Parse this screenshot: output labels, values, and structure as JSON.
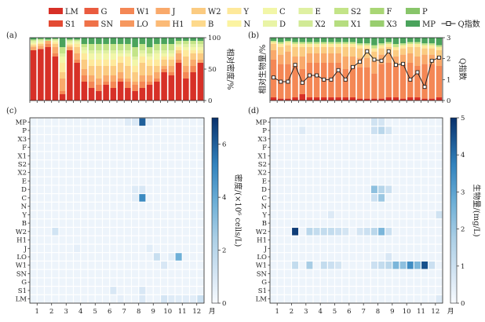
{
  "legend": {
    "items": [
      {
        "code": "LM",
        "label": "LM",
        "color": "#d73027"
      },
      {
        "code": "G",
        "label": "G",
        "color": "#ea5b3f"
      },
      {
        "code": "W1",
        "label": "W1",
        "color": "#f48755"
      },
      {
        "code": "J",
        "label": "J",
        "color": "#f9a96b"
      },
      {
        "code": "W2",
        "label": "W2",
        "color": "#fbcb81"
      },
      {
        "code": "Y",
        "label": "Y",
        "color": "#fee99b"
      },
      {
        "code": "C",
        "label": "C",
        "color": "#f2f6a8"
      },
      {
        "code": "E",
        "label": "E",
        "color": "#dff0a2"
      },
      {
        "code": "S2",
        "label": "S2",
        "color": "#c3e488"
      },
      {
        "code": "F",
        "label": "F",
        "color": "#a9d675"
      },
      {
        "code": "P",
        "label": "P",
        "color": "#88c56a"
      },
      {
        "code": "S1",
        "label": "S1",
        "color": "#e34a33"
      },
      {
        "code": "SN",
        "label": "SN",
        "color": "#ef7148"
      },
      {
        "code": "LO",
        "label": "LO",
        "color": "#f6985f"
      },
      {
        "code": "H1",
        "label": "H1",
        "color": "#fbba76"
      },
      {
        "code": "B",
        "label": "B",
        "color": "#fdd98c"
      },
      {
        "code": "N",
        "label": "N",
        "color": "#fbf3a1"
      },
      {
        "code": "D",
        "label": "D",
        "color": "#e9f4a6"
      },
      {
        "code": "X2",
        "label": "X2",
        "color": "#d1ea96"
      },
      {
        "code": "X1",
        "label": "X1",
        "color": "#b6dd80"
      },
      {
        "code": "X3",
        "label": "X3",
        "color": "#99ce6f"
      },
      {
        "code": "MP",
        "label": "MP",
        "color": "#4aa35c"
      }
    ],
    "q_label": "Q指数"
  },
  "panels": {
    "a": "(a)",
    "b": "(b)",
    "c": "(c)",
    "d": "(d)"
  },
  "chart_data": [
    {
      "id": "a",
      "type": "bar",
      "stacked": true,
      "ylabel": "相对密度/%",
      "ylim": [
        0,
        100
      ],
      "yticks": [
        0,
        50,
        100
      ],
      "n_bars": 24,
      "stack_order": [
        "LM",
        "S1",
        "G",
        "SN",
        "W1",
        "LO",
        "J",
        "H1",
        "W2",
        "B",
        "Y",
        "N",
        "C",
        "D",
        "E",
        "X2",
        "S2",
        "X1",
        "F",
        "X3",
        "P",
        "MP"
      ],
      "series": [
        {
          "name": "LM",
          "values": [
            80,
            82,
            85,
            70,
            10,
            80,
            60,
            30,
            20,
            15,
            25,
            20,
            30,
            20,
            15,
            20,
            25,
            30,
            45,
            40,
            60,
            35,
            45,
            60
          ]
        },
        {
          "name": "S1",
          "values": [
            0,
            0,
            0,
            0,
            0,
            0,
            0,
            0,
            0,
            0,
            0,
            0,
            0,
            0,
            0,
            0,
            0,
            0,
            0,
            0,
            0,
            0,
            0,
            0
          ]
        },
        {
          "name": "W1",
          "values": [
            0,
            0,
            5,
            5,
            5,
            0,
            5,
            10,
            10,
            10,
            5,
            10,
            5,
            10,
            10,
            10,
            5,
            5,
            5,
            5,
            5,
            10,
            10,
            0
          ]
        },
        {
          "name": "J",
          "values": [
            5,
            5,
            5,
            10,
            20,
            5,
            10,
            10,
            10,
            10,
            10,
            10,
            10,
            5,
            5,
            10,
            10,
            10,
            5,
            10,
            10,
            10,
            10,
            5
          ]
        },
        {
          "name": "W2",
          "values": [
            3,
            3,
            0,
            5,
            10,
            3,
            10,
            15,
            15,
            20,
            15,
            15,
            15,
            20,
            15,
            20,
            15,
            10,
            10,
            10,
            5,
            15,
            10,
            10
          ]
        },
        {
          "name": "Y",
          "values": [
            2,
            2,
            0,
            3,
            15,
            2,
            5,
            10,
            10,
            10,
            10,
            10,
            10,
            15,
            10,
            10,
            10,
            10,
            5,
            5,
            5,
            10,
            5,
            5
          ]
        },
        {
          "name": "C",
          "values": [
            2,
            2,
            0,
            2,
            10,
            2,
            3,
            5,
            10,
            10,
            10,
            10,
            5,
            5,
            10,
            5,
            5,
            10,
            5,
            5,
            3,
            5,
            5,
            5
          ]
        },
        {
          "name": "E",
          "values": [
            3,
            2,
            0,
            2,
            5,
            3,
            2,
            5,
            5,
            5,
            5,
            5,
            5,
            5,
            5,
            5,
            5,
            5,
            5,
            5,
            2,
            5,
            5,
            5
          ]
        },
        {
          "name": "S2",
          "values": [
            2,
            2,
            2,
            1,
            10,
            2,
            2,
            5,
            10,
            10,
            10,
            10,
            10,
            10,
            15,
            10,
            10,
            10,
            10,
            10,
            5,
            5,
            5,
            5
          ]
        },
        {
          "name": "MP",
          "values": [
            3,
            2,
            3,
            2,
            15,
            3,
            3,
            10,
            10,
            10,
            10,
            10,
            10,
            10,
            15,
            10,
            15,
            10,
            10,
            10,
            5,
            5,
            5,
            5
          ]
        }
      ]
    },
    {
      "id": "b",
      "type": "bar",
      "stacked": true,
      "ylabel": "相对生物量/%",
      "ylim": [
        0,
        100
      ],
      "y2label": "Q指数",
      "y2lim": [
        0,
        3
      ],
      "y2ticks": [
        0,
        1,
        2,
        3
      ],
      "n_bars": 24,
      "series": [
        {
          "name": "LM",
          "values": [
            5,
            3,
            3,
            5,
            10,
            5,
            5,
            5,
            5,
            5,
            5,
            5,
            3,
            3,
            3,
            3,
            5,
            5,
            3,
            5,
            5,
            3,
            3,
            5
          ]
        },
        {
          "name": "W1",
          "values": [
            60,
            55,
            55,
            50,
            40,
            55,
            55,
            55,
            55,
            55,
            45,
            50,
            50,
            50,
            40,
            55,
            55,
            50,
            55,
            55,
            50,
            55,
            55,
            50
          ]
        },
        {
          "name": "J",
          "values": [
            15,
            15,
            20,
            15,
            20,
            15,
            15,
            15,
            15,
            15,
            20,
            15,
            15,
            15,
            20,
            15,
            15,
            15,
            15,
            15,
            15,
            15,
            15,
            15
          ]
        },
        {
          "name": "W2",
          "values": [
            10,
            12,
            10,
            15,
            15,
            10,
            10,
            10,
            10,
            10,
            15,
            15,
            15,
            15,
            15,
            10,
            10,
            10,
            10,
            10,
            15,
            10,
            10,
            10
          ]
        },
        {
          "name": "Y",
          "values": [
            3,
            5,
            5,
            5,
            5,
            5,
            5,
            5,
            5,
            5,
            5,
            5,
            5,
            5,
            5,
            5,
            5,
            5,
            5,
            5,
            5,
            5,
            5,
            5
          ]
        },
        {
          "name": "S2",
          "values": [
            2,
            3,
            2,
            3,
            3,
            3,
            3,
            3,
            3,
            3,
            3,
            3,
            3,
            3,
            5,
            3,
            3,
            5,
            3,
            3,
            3,
            3,
            3,
            3
          ]
        },
        {
          "name": "MP",
          "values": [
            5,
            7,
            5,
            7,
            7,
            7,
            7,
            7,
            7,
            7,
            7,
            7,
            9,
            9,
            12,
            9,
            7,
            10,
            9,
            7,
            7,
            9,
            9,
            12
          ]
        }
      ],
      "q_index": [
        1.1,
        0.9,
        0.9,
        1.7,
        0.85,
        1.2,
        1.2,
        1.0,
        1.0,
        1.45,
        1.0,
        1.6,
        1.85,
        2.35,
        1.95,
        1.9,
        2.35,
        1.7,
        1.75,
        1.0,
        1.35,
        0.65,
        1.9,
        2.05
      ]
    },
    {
      "id": "c",
      "type": "heatmap",
      "cbar_label": "密度/(×10⁶ cells/L)",
      "vlim": [
        0,
        7
      ],
      "cbar_ticks": [
        0,
        2,
        4,
        6
      ],
      "xlabel": "月",
      "xticks": [
        "1",
        "2",
        "3",
        "4",
        "5",
        "6",
        "7",
        "8",
        "9",
        "10",
        "11",
        "12"
      ],
      "yticks": [
        "MP",
        "P",
        "X3",
        "F",
        "X1",
        "S2",
        "X2",
        "E",
        "D",
        "C",
        "N",
        "Y",
        "B",
        "W2",
        "H1",
        "J",
        "LO",
        "W1",
        "SN",
        "G",
        "S1",
        "LM"
      ],
      "n_cols": 24,
      "cells": [
        {
          "row": "MP",
          "col": 13,
          "v": 0.8
        },
        {
          "row": "MP",
          "col": 14,
          "v": 0.9
        },
        {
          "row": "MP",
          "col": 15,
          "v": 6.0
        },
        {
          "row": "MP",
          "col": 16,
          "v": 0.6
        },
        {
          "row": "D",
          "col": 14,
          "v": 0.8
        },
        {
          "row": "D",
          "col": 15,
          "v": 1.0
        },
        {
          "row": "C",
          "col": 15,
          "v": 5.0
        },
        {
          "row": "C",
          "col": 14,
          "v": 0.7
        },
        {
          "row": "W2",
          "col": 3,
          "v": 1.2
        },
        {
          "row": "J",
          "col": 6,
          "v": 0.6
        },
        {
          "row": "J",
          "col": 16,
          "v": 0.7
        },
        {
          "row": "LO",
          "col": 17,
          "v": 1.5
        },
        {
          "row": "LO",
          "col": 20,
          "v": 3.8
        },
        {
          "row": "LO",
          "col": 19,
          "v": 0.7
        },
        {
          "row": "W1",
          "col": 18,
          "v": 1.0
        },
        {
          "row": "S1",
          "col": 11,
          "v": 1.0
        },
        {
          "row": "S1",
          "col": 15,
          "v": 1.0
        },
        {
          "row": "LM",
          "col": 12,
          "v": 0.6
        },
        {
          "row": "LM",
          "col": 15,
          "v": 0.9
        },
        {
          "row": "LM",
          "col": 18,
          "v": 1.1
        },
        {
          "row": "LM",
          "col": 19,
          "v": 0.8
        },
        {
          "row": "LM",
          "col": 20,
          "v": 0.7
        },
        {
          "row": "LM",
          "col": 21,
          "v": 0.7
        },
        {
          "row": "LM",
          "col": 22,
          "v": 0.7
        },
        {
          "row": "LM",
          "col": 23,
          "v": 1.4
        }
      ],
      "base_value": 0.35
    },
    {
      "id": "d",
      "type": "heatmap",
      "cbar_label": "生物量/(mg/L)",
      "vlim": [
        0,
        5
      ],
      "cbar_ticks": [
        0,
        1,
        2,
        3,
        4,
        5
      ],
      "xlabel": "月",
      "xticks": [
        "1",
        "2",
        "3",
        "4",
        "5",
        "6",
        "7",
        "8",
        "9",
        "10",
        "11",
        "12"
      ],
      "yticks": [
        "MP",
        "P",
        "X3",
        "F",
        "X1",
        "S2",
        "X2",
        "E",
        "D",
        "C",
        "N",
        "Y",
        "B",
        "W2",
        "H1",
        "J",
        "LO",
        "W1",
        "SN",
        "G",
        "S1",
        "LM"
      ],
      "n_cols": 24,
      "cells": [
        {
          "row": "MP",
          "col": 14,
          "v": 0.9
        },
        {
          "row": "MP",
          "col": 15,
          "v": 0.8
        },
        {
          "row": "P",
          "col": 4,
          "v": 0.6
        },
        {
          "row": "P",
          "col": 14,
          "v": 1.0
        },
        {
          "row": "P",
          "col": 15,
          "v": 1.4
        },
        {
          "row": "P",
          "col": 16,
          "v": 0.8
        },
        {
          "row": "D",
          "col": 14,
          "v": 2.2
        },
        {
          "row": "D",
          "col": 15,
          "v": 1.5
        },
        {
          "row": "D",
          "col": 16,
          "v": 1.0
        },
        {
          "row": "C",
          "col": 14,
          "v": 1.0
        },
        {
          "row": "C",
          "col": 15,
          "v": 2.0
        },
        {
          "row": "Y",
          "col": 8,
          "v": 0.6
        },
        {
          "row": "Y",
          "col": 23,
          "v": 0.9
        },
        {
          "row": "W2",
          "col": 3,
          "v": 4.8
        },
        {
          "row": "W2",
          "col": 5,
          "v": 1.4
        },
        {
          "row": "W2",
          "col": 6,
          "v": 1.2
        },
        {
          "row": "W2",
          "col": 7,
          "v": 1.2
        },
        {
          "row": "W2",
          "col": 8,
          "v": 1.2
        },
        {
          "row": "W2",
          "col": 9,
          "v": 1.0
        },
        {
          "row": "W2",
          "col": 10,
          "v": 0.8
        },
        {
          "row": "W2",
          "col": 12,
          "v": 0.8
        },
        {
          "row": "W2",
          "col": 13,
          "v": 1.0
        },
        {
          "row": "W2",
          "col": 14,
          "v": 1.4
        },
        {
          "row": "W2",
          "col": 15,
          "v": 2.5
        },
        {
          "row": "W2",
          "col": 16,
          "v": 1.0
        },
        {
          "row": "W1",
          "col": 3,
          "v": 1.2
        },
        {
          "row": "W1",
          "col": 5,
          "v": 1.8
        },
        {
          "row": "W1",
          "col": 7,
          "v": 1.2
        },
        {
          "row": "W1",
          "col": 8,
          "v": 1.0
        },
        {
          "row": "W1",
          "col": 9,
          "v": 0.8
        },
        {
          "row": "W1",
          "col": 14,
          "v": 1.0
        },
        {
          "row": "W1",
          "col": 15,
          "v": 1.2
        },
        {
          "row": "W1",
          "col": 16,
          "v": 1.4
        },
        {
          "row": "W1",
          "col": 17,
          "v": 2.5
        },
        {
          "row": "W1",
          "col": 18,
          "v": 2.2
        },
        {
          "row": "W1",
          "col": 19,
          "v": 3.5
        },
        {
          "row": "W1",
          "col": 20,
          "v": 2.5
        },
        {
          "row": "W1",
          "col": 21,
          "v": 4.5
        },
        {
          "row": "W1",
          "col": 22,
          "v": 1.0
        },
        {
          "row": "LO",
          "col": 16,
          "v": 0.7
        },
        {
          "row": "LM",
          "col": 23,
          "v": 0.6
        }
      ],
      "base_value": 0.25
    }
  ]
}
